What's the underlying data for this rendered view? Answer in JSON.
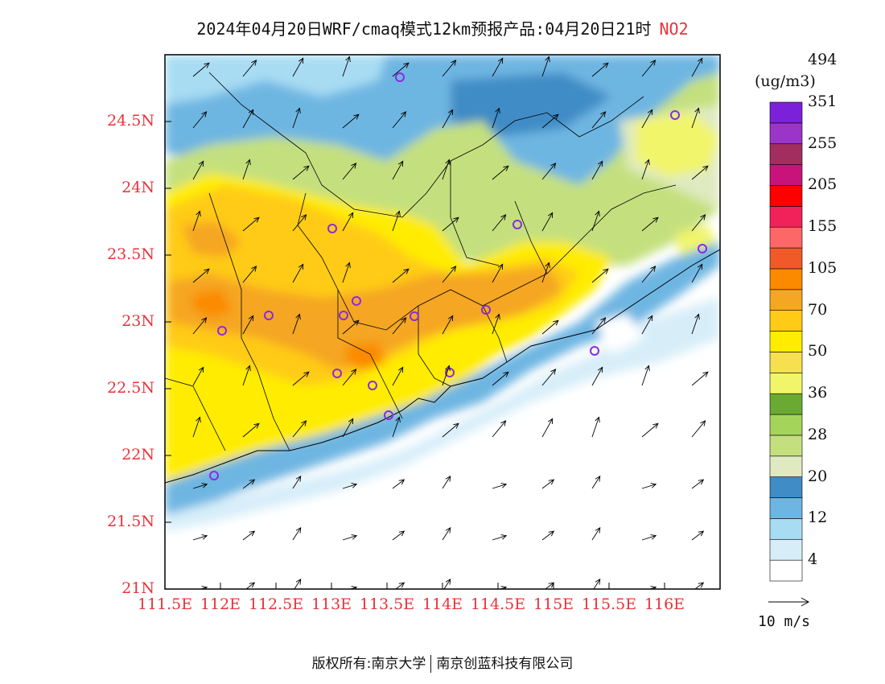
{
  "header": {
    "title": "2024年04月20日WRF/cmaq模式12km预报产品:04月20日21时",
    "pollutant": "NO2"
  },
  "map": {
    "lat_ticks": [
      "24.5N",
      "24N",
      "23.5N",
      "23N",
      "22.5N",
      "22N",
      "21.5N",
      "21N"
    ],
    "lon_ticks": [
      "111.5E",
      "112E",
      "112.5E",
      "113E",
      "113.5E",
      "114E",
      "114.5E",
      "115E",
      "115.5E",
      "116E"
    ],
    "lon_range": [
      111.5,
      116.5
    ],
    "lat_range": [
      21.0,
      25.0
    ]
  },
  "colorbar": {
    "units": "(ug/m3)",
    "colors": [
      "#ffffff",
      "#d7eef9",
      "#a8dcf3",
      "#6eb6e2",
      "#3f8cc6",
      "#dfeac0",
      "#c4e07e",
      "#a5d45a",
      "#6aaa33",
      "#f1f56a",
      "#f7e04f",
      "#ffec00",
      "#ffcb16",
      "#f5a623",
      "#fb8a00",
      "#f05a28",
      "#fc6767",
      "#f1215a",
      "#fe0000",
      "#c8137a",
      "#a22e5f",
      "#9b35c9",
      "#7a21d9"
    ],
    "labels": [
      "4",
      "12",
      "20",
      "28",
      "36",
      "50",
      "70",
      "105",
      "155",
      "205",
      "255",
      "351",
      "494"
    ]
  },
  "wind": {
    "reference_label": "10 m/s"
  },
  "footer": {
    "copyright_left": "版权所有:南京大学",
    "copyright_right": "南京创蓝科技有限公司"
  }
}
